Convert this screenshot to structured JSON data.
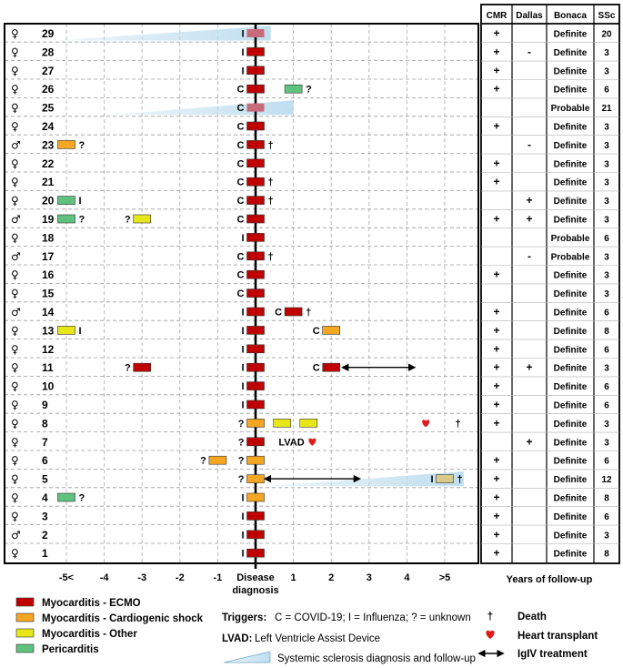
{
  "chart_data": {
    "type": "timeline",
    "x_ticks": [
      "-5<",
      "-4",
      "-3",
      "-2",
      "-1",
      "Disease diagnosis",
      "1",
      "2",
      "3",
      "4",
      ">5"
    ],
    "x_tick_values": [
      -5,
      -4,
      -3,
      -2,
      -1,
      0,
      1,
      2,
      3,
      4,
      5
    ],
    "xlim": [
      -5.85,
      5.85
    ],
    "xlabel": "Years of follow-up",
    "columns": [
      "CMR",
      "Dallas",
      "Bonaca",
      "SSc"
    ],
    "colors": {
      "ECMO": "#c00000",
      "Cardiogenic": "#f5a623",
      "Other": "#e6e619",
      "Pericarditis": "#5fc27e",
      "ssc": "#bcdcee",
      "heart": "#e01c1c",
      "pink": "#c86b7a"
    },
    "legend": {
      "types": [
        {
          "key": "ECMO",
          "label": "Myocarditis - ECMO"
        },
        {
          "key": "Cardiogenic",
          "label": "Myocarditis - Cardiogenic shock"
        },
        {
          "key": "Other",
          "label": "Myocarditis - Other"
        },
        {
          "key": "Pericarditis",
          "label": "Pericarditis"
        }
      ],
      "triggers_title": "Triggers:",
      "triggers_text": "C = COVID-19; I = Influenza; ? = unknown",
      "lvad_title": "LVAD:",
      "lvad_text": "Left Ventricle Assist Device",
      "ssc_text": "Systemic sclerosis diagnosis and follow-up",
      "death_symbol": "†",
      "death_label": "Death",
      "heart_label": "Heart transplant",
      "igiv_label": "IgIV treatment"
    },
    "patients": [
      {
        "id": "29",
        "sex": "♀",
        "ssc_from": -5.3,
        "ssc_to": 0.4,
        "events": [
          {
            "t": 0,
            "type": "pink",
            "trig": "I"
          }
        ],
        "CMR": "+",
        "Dallas": "",
        "Bonaca": "Definite",
        "SSc": "20"
      },
      {
        "id": "28",
        "sex": "♀",
        "events": [
          {
            "t": 0,
            "type": "ECMO",
            "trig": "I"
          }
        ],
        "CMR": "+",
        "Dallas": "-",
        "Bonaca": "Definite",
        "SSc": "3"
      },
      {
        "id": "27",
        "sex": "♀",
        "events": [
          {
            "t": 0,
            "type": "ECMO",
            "trig": "I"
          }
        ],
        "CMR": "+",
        "Dallas": "",
        "Bonaca": "Definite",
        "SSc": "3"
      },
      {
        "id": "26",
        "sex": "♀",
        "events": [
          {
            "t": 0,
            "type": "ECMO",
            "trig": "C"
          },
          {
            "t": 1,
            "type": "Pericarditis",
            "after": "?"
          }
        ],
        "CMR": "+",
        "Dallas": "",
        "Bonaca": "Definite",
        "SSc": "6"
      },
      {
        "id": "25",
        "sex": "♀",
        "ssc_from": -3.8,
        "ssc_to": 1.0,
        "events": [
          {
            "t": 0,
            "type": "pink",
            "trig": "C"
          }
        ],
        "CMR": "",
        "Dallas": "",
        "Bonaca": "Probable",
        "SSc": "21"
      },
      {
        "id": "24",
        "sex": "♀",
        "events": [
          {
            "t": 0,
            "type": "ECMO",
            "trig": "C"
          }
        ],
        "CMR": "+",
        "Dallas": "",
        "Bonaca": "Definite",
        "SSc": "3"
      },
      {
        "id": "23",
        "sex": "♂",
        "events": [
          {
            "t": -5,
            "type": "Cardiogenic",
            "after": "?"
          },
          {
            "t": 0,
            "type": "ECMO",
            "trig": "C",
            "after": "†"
          }
        ],
        "CMR": "",
        "Dallas": "-",
        "Bonaca": "Definite",
        "SSc": "3"
      },
      {
        "id": "22",
        "sex": "♀",
        "events": [
          {
            "t": 0,
            "type": "ECMO",
            "trig": "C"
          }
        ],
        "CMR": "+",
        "Dallas": "",
        "Bonaca": "Definite",
        "SSc": "3"
      },
      {
        "id": "21",
        "sex": "♀",
        "events": [
          {
            "t": 0,
            "type": "ECMO",
            "trig": "C",
            "after": "†"
          }
        ],
        "CMR": "+",
        "Dallas": "",
        "Bonaca": "Definite",
        "SSc": "3"
      },
      {
        "id": "20",
        "sex": "♀",
        "events": [
          {
            "t": -5,
            "type": "Pericarditis",
            "after": "I"
          },
          {
            "t": 0,
            "type": "ECMO",
            "trig": "C",
            "after": "†"
          }
        ],
        "CMR": "",
        "Dallas": "+",
        "Bonaca": "Definite",
        "SSc": "3"
      },
      {
        "id": "19",
        "sex": "♂",
        "events": [
          {
            "t": -5,
            "type": "Pericarditis",
            "after": "?"
          },
          {
            "t": -3,
            "type": "Other",
            "trig": "?"
          },
          {
            "t": 0,
            "type": "ECMO",
            "trig": "C"
          }
        ],
        "CMR": "+",
        "Dallas": "+",
        "Bonaca": "Definite",
        "SSc": "3"
      },
      {
        "id": "18",
        "sex": "♀",
        "events": [
          {
            "t": 0,
            "type": "ECMO",
            "trig": "I"
          }
        ],
        "CMR": "",
        "Dallas": "",
        "Bonaca": "Probable",
        "SSc": "6"
      },
      {
        "id": "17",
        "sex": "♂",
        "events": [
          {
            "t": 0,
            "type": "ECMO",
            "trig": "C",
            "after": "†"
          }
        ],
        "CMR": "",
        "Dallas": "-",
        "Bonaca": "Probable",
        "SSc": "3"
      },
      {
        "id": "16",
        "sex": "♀",
        "events": [
          {
            "t": 0,
            "type": "ECMO",
            "trig": "C"
          }
        ],
        "CMR": "+",
        "Dallas": "",
        "Bonaca": "Definite",
        "SSc": "3"
      },
      {
        "id": "15",
        "sex": "♀",
        "events": [
          {
            "t": 0,
            "type": "ECMO",
            "trig": "C"
          }
        ],
        "CMR": "",
        "Dallas": "",
        "Bonaca": "Definite",
        "SSc": "3"
      },
      {
        "id": "14",
        "sex": "♂",
        "events": [
          {
            "t": 0,
            "type": "ECMO",
            "trig": "I"
          },
          {
            "t": 1,
            "type": "ECMO",
            "trig": "C",
            "after": "†"
          }
        ],
        "CMR": "+",
        "Dallas": "",
        "Bonaca": "Definite",
        "SSc": "6"
      },
      {
        "id": "13",
        "sex": "♀",
        "events": [
          {
            "t": -5,
            "type": "Other",
            "after": "I"
          },
          {
            "t": 0,
            "type": "ECMO",
            "trig": "I"
          },
          {
            "t": 2,
            "type": "Cardiogenic",
            "trig": "C"
          }
        ],
        "CMR": "+",
        "Dallas": "",
        "Bonaca": "Definite",
        "SSc": "8"
      },
      {
        "id": "12",
        "sex": "♀",
        "events": [
          {
            "t": 0,
            "type": "ECMO",
            "trig": "I"
          }
        ],
        "CMR": "+",
        "Dallas": "",
        "Bonaca": "Definite",
        "SSc": "6"
      },
      {
        "id": "11",
        "sex": "♀",
        "igiv_from": 2.3,
        "igiv_to": 4.2,
        "events": [
          {
            "t": -3,
            "type": "ECMO",
            "trig": "?"
          },
          {
            "t": 0,
            "type": "ECMO",
            "trig": "I"
          },
          {
            "t": 2,
            "type": "ECMO",
            "trig": "C"
          }
        ],
        "CMR": "+",
        "Dallas": "+",
        "Bonaca": "Definite",
        "SSc": "3"
      },
      {
        "id": "10",
        "sex": "♀",
        "events": [
          {
            "t": 0,
            "type": "ECMO",
            "trig": "I"
          }
        ],
        "CMR": "+",
        "Dallas": "",
        "Bonaca": "Definite",
        "SSc": "6"
      },
      {
        "id": "9",
        "sex": "♀",
        "events": [
          {
            "t": 0,
            "type": "ECMO",
            "trig": "I"
          }
        ],
        "CMR": "+",
        "Dallas": "",
        "Bonaca": "Definite",
        "SSc": "6"
      },
      {
        "id": "8",
        "sex": "♀",
        "heart_t": 4.5,
        "death_t": 5.35,
        "events": [
          {
            "t": 0,
            "type": "Cardiogenic",
            "trig": "?"
          },
          {
            "t": 0.7,
            "type": "Other"
          },
          {
            "t": 1.4,
            "type": "Other"
          }
        ],
        "CMR": "+",
        "Dallas": "",
        "Bonaca": "Definite",
        "SSc": "3"
      },
      {
        "id": "7",
        "sex": "♀",
        "heart_t": 1.5,
        "lvad_t": 0.95,
        "lvad_label": "LVAD",
        "events": [
          {
            "t": 0,
            "type": "ECMO",
            "trig": "?"
          }
        ],
        "CMR": "",
        "Dallas": "+",
        "Bonaca": "Definite",
        "SSc": "3"
      },
      {
        "id": "6",
        "sex": "♀",
        "events": [
          {
            "t": -1,
            "type": "Cardiogenic",
            "trig": "?"
          },
          {
            "t": 0,
            "type": "Cardiogenic",
            "trig": "?"
          }
        ],
        "CMR": "+",
        "Dallas": "",
        "Bonaca": "Definite",
        "SSc": "6"
      },
      {
        "id": "5",
        "sex": "♀",
        "ssc_from": 0.3,
        "ssc_to": 5.5,
        "igiv_from": 0.25,
        "igiv_to": 2.75,
        "events": [
          {
            "t": 0,
            "type": "Cardiogenic",
            "trig": "?"
          },
          {
            "t": 5,
            "type": "khaki",
            "trig": "I",
            "after": "†"
          }
        ],
        "CMR": "+",
        "Dallas": "",
        "Bonaca": "Definite",
        "SSc": "12"
      },
      {
        "id": "4",
        "sex": "♀",
        "events": [
          {
            "t": -5,
            "type": "Pericarditis",
            "after": "?"
          },
          {
            "t": 0,
            "type": "Cardiogenic",
            "trig": "I"
          }
        ],
        "CMR": "+",
        "Dallas": "",
        "Bonaca": "Definite",
        "SSc": "8"
      },
      {
        "id": "3",
        "sex": "♀",
        "events": [
          {
            "t": 0,
            "type": "ECMO",
            "trig": "I"
          }
        ],
        "CMR": "+",
        "Dallas": "",
        "Bonaca": "Definite",
        "SSc": "6"
      },
      {
        "id": "2",
        "sex": "♂",
        "events": [
          {
            "t": 0,
            "type": "ECMO",
            "trig": "I"
          }
        ],
        "CMR": "+",
        "Dallas": "",
        "Bonaca": "Definite",
        "SSc": "3"
      },
      {
        "id": "1",
        "sex": "♀",
        "events": [
          {
            "t": 0,
            "type": "ECMO",
            "trig": "I"
          }
        ],
        "CMR": "+",
        "Dallas": "",
        "Bonaca": "Definite",
        "SSc": "8"
      }
    ]
  }
}
